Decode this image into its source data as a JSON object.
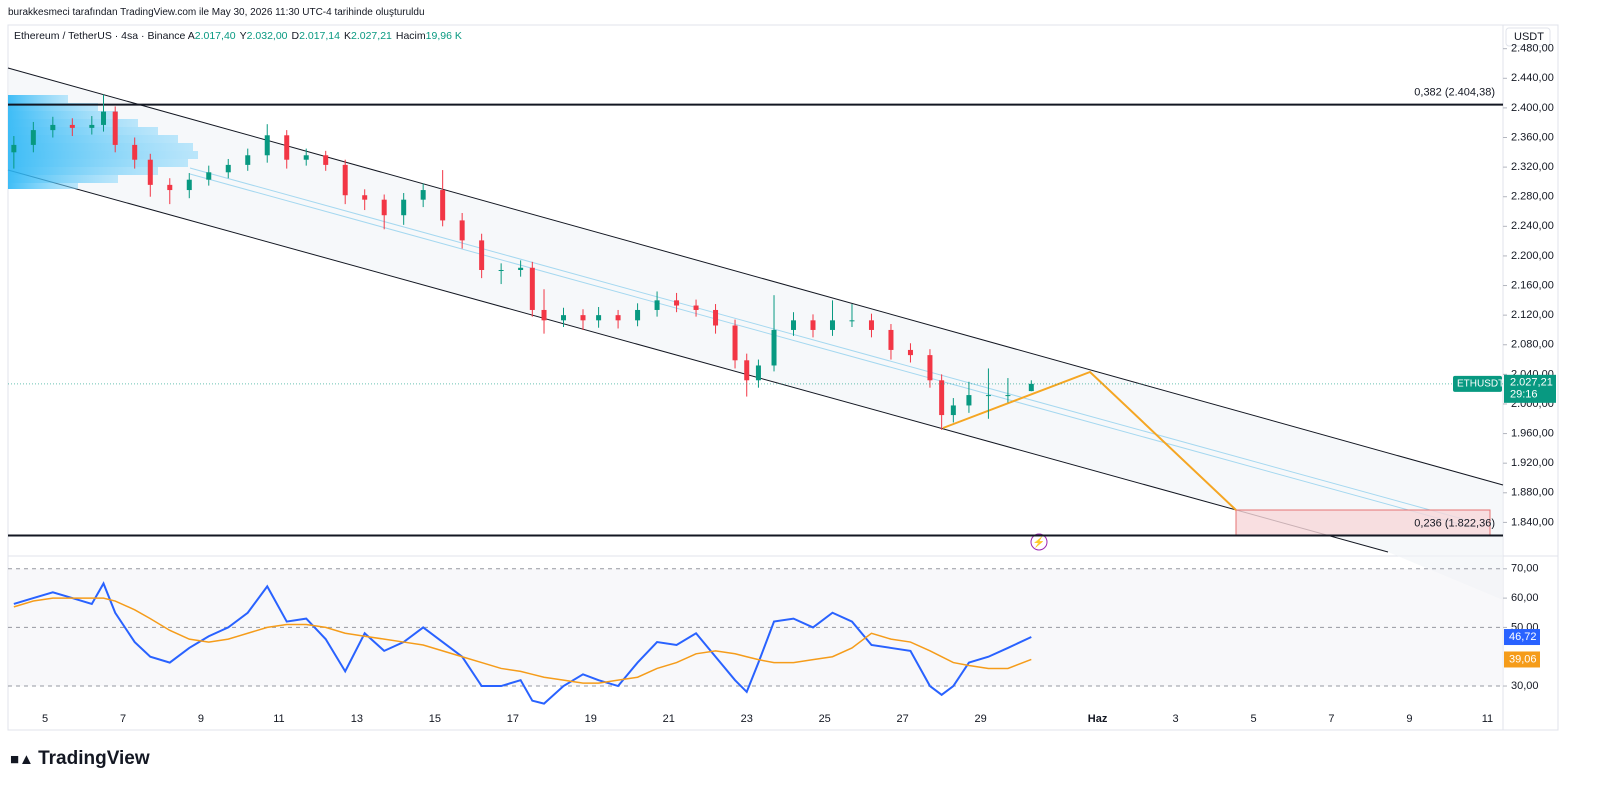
{
  "header": {
    "note": "burakkesmeci tarafından TradingView.com ile May 30, 2026 11:30 UTC-4 tarihinde oluşturuldu",
    "symbol": "Ethereum / TetherUS · 4sa · Binance",
    "legend": [
      {
        "key": "A",
        "value": "2.017,40"
      },
      {
        "key": "Y",
        "value": "2.032,00"
      },
      {
        "key": "D",
        "value": "2.017,14"
      },
      {
        "key": "K",
        "value": "2.027,21"
      },
      {
        "key": "Hacim",
        "value": "19,96 K"
      }
    ]
  },
  "footer": {
    "brand": "TradingView"
  },
  "chart_data": [
    {
      "type": "candlestick",
      "currency": "USDT",
      "up_color": "#089981",
      "down_color": "#f23645",
      "x": [
        4.2,
        4.7,
        5.2,
        5.7,
        6.2,
        6.5,
        6.8,
        7.3,
        7.7,
        8.2,
        8.7,
        9.2,
        9.7,
        10.2,
        10.7,
        11.2,
        11.7,
        12.2,
        12.7,
        13.2,
        13.7,
        14.2,
        14.7,
        15.2,
        15.7,
        16.2,
        16.7,
        17.2,
        17.5,
        17.8,
        18.3,
        18.8,
        19.2,
        19.7,
        20.2,
        20.7,
        21.2,
        21.7,
        22.2,
        22.7,
        23.0,
        23.3,
        23.7,
        24.2,
        24.7,
        25.2,
        25.7,
        26.2,
        26.7,
        27.2,
        27.7,
        28.0,
        28.3,
        28.7,
        29.2,
        29.7,
        30.3
      ],
      "open": [
        2340,
        2350,
        2370,
        2377,
        2373,
        2377,
        2395,
        2350,
        2330,
        2296,
        2289,
        2303,
        2313,
        2323,
        2336,
        2363,
        2330,
        2336,
        2323,
        2282,
        2276,
        2255,
        2276,
        2289,
        2248,
        2221,
        2181,
        2181,
        2184,
        2127,
        2113,
        2120,
        2113,
        2120,
        2113,
        2127,
        2140,
        2133,
        2127,
        2106,
        2059,
        2032,
        2052,
        2100,
        2113,
        2100,
        2113,
        2113,
        2100,
        2073,
        2066,
        2032,
        1985,
        1998,
        2012,
        2012,
        2017.4
      ],
      "high": [
        2362,
        2381,
        2388,
        2386,
        2389,
        2418,
        2402,
        2360,
        2338,
        2305,
        2312,
        2322,
        2331,
        2345,
        2378,
        2370,
        2345,
        2342,
        2330,
        2290,
        2283,
        2285,
        2298,
        2316,
        2258,
        2230,
        2190,
        2194,
        2192,
        2155,
        2130,
        2128,
        2131,
        2127,
        2136,
        2152,
        2150,
        2141,
        2135,
        2114,
        2068,
        2060,
        2147,
        2124,
        2121,
        2140,
        2135,
        2122,
        2108,
        2082,
        2074,
        2040,
        2008,
        2030,
        2048,
        2035,
        2032
      ],
      "low": [
        2318,
        2340,
        2360,
        2362,
        2364,
        2368,
        2340,
        2318,
        2280,
        2270,
        2278,
        2295,
        2305,
        2315,
        2326,
        2318,
        2322,
        2315,
        2270,
        2262,
        2236,
        2242,
        2266,
        2240,
        2210,
        2170,
        2162,
        2172,
        2118,
        2095,
        2104,
        2100,
        2103,
        2102,
        2105,
        2118,
        2124,
        2118,
        2095,
        2048,
        2010,
        2022,
        2044,
        2092,
        2090,
        2092,
        2104,
        2090,
        2060,
        2056,
        2022,
        1965,
        1975,
        1988,
        1980,
        2002,
        2017.14
      ],
      "close": [
        2350,
        2370,
        2377,
        2373,
        2377,
        2395,
        2350,
        2330,
        2296,
        2289,
        2303,
        2313,
        2323,
        2336,
        2363,
        2330,
        2336,
        2323,
        2282,
        2276,
        2255,
        2276,
        2289,
        2248,
        2221,
        2181,
        2181,
        2184,
        2127,
        2113,
        2120,
        2113,
        2120,
        2113,
        2127,
        2140,
        2133,
        2127,
        2106,
        2059,
        2032,
        2052,
        2100,
        2113,
        2100,
        2113,
        2113,
        2100,
        2073,
        2066,
        2032,
        1985,
        1998,
        2012,
        2012,
        2012,
        2027.21
      ],
      "xlim": [
        4.05,
        42.4
      ],
      "ylim": [
        1800,
        2512
      ],
      "yticks": [
        {
          "value": 1840,
          "label": "1.840,00"
        },
        {
          "value": 1880,
          "label": "1.880,00"
        },
        {
          "value": 1920,
          "label": "1.920,00"
        },
        {
          "value": 1960,
          "label": "1.960,00"
        },
        {
          "value": 2000,
          "label": "2.000,00"
        },
        {
          "value": 2040,
          "label": "2.040,00"
        },
        {
          "value": 2080,
          "label": "2.080,00"
        },
        {
          "value": 2120,
          "label": "2.120,00"
        },
        {
          "value": 2160,
          "label": "2.160,00"
        },
        {
          "value": 2200,
          "label": "2.200,00"
        },
        {
          "value": 2240,
          "label": "2.240,00"
        },
        {
          "value": 2280,
          "label": "2.280,00"
        },
        {
          "value": 2320,
          "label": "2.320,00"
        },
        {
          "value": 2360,
          "label": "2.360,00"
        },
        {
          "value": 2400,
          "label": "2.400,00"
        },
        {
          "value": 2440,
          "label": "2.440,00"
        },
        {
          "value": 2480,
          "label": "2.480,00"
        }
      ],
      "levels": [
        {
          "value": 2404.38,
          "label": "0,382 (2.404,38)"
        },
        {
          "value": 1822.36,
          "label": "0,236 (1.822,36)"
        }
      ],
      "last_price": {
        "value": 2027.21,
        "label": "2.027,21",
        "symbol": "ETHUSDT",
        "countdown": "29:16"
      }
    },
    {
      "type": "line",
      "ylim": [
        15,
        73
      ],
      "yticks": [
        {
          "value": 30,
          "label": "30,00"
        },
        {
          "value": 50,
          "label": "50,00"
        },
        {
          "value": 60,
          "label": "60,00"
        },
        {
          "value": 70,
          "label": "70,00"
        }
      ],
      "hlines": [
        30,
        50,
        70
      ],
      "xlim": [
        4.05,
        42.4
      ],
      "xticks": [
        5,
        7,
        9,
        11,
        13,
        15,
        17,
        19,
        21,
        23,
        25,
        27,
        29,
        {
          "value": 32,
          "label": "Haz"
        },
        {
          "value": 34,
          "label": "3"
        },
        {
          "value": 36,
          "label": "5"
        },
        {
          "value": 38,
          "label": "7"
        },
        {
          "value": 40,
          "label": "9"
        },
        {
          "value": 42,
          "label": "11"
        }
      ],
      "x": [
        4.2,
        4.7,
        5.2,
        5.7,
        6.2,
        6.5,
        6.8,
        7.3,
        7.7,
        8.2,
        8.7,
        9.2,
        9.7,
        10.2,
        10.7,
        11.2,
        11.7,
        12.2,
        12.7,
        13.2,
        13.7,
        14.2,
        14.7,
        15.2,
        15.7,
        16.2,
        16.7,
        17.2,
        17.5,
        17.8,
        18.3,
        18.8,
        19.2,
        19.7,
        20.2,
        20.7,
        21.2,
        21.7,
        22.2,
        22.7,
        23.0,
        23.3,
        23.7,
        24.2,
        24.7,
        25.2,
        25.7,
        26.2,
        26.7,
        27.2,
        27.7,
        28.0,
        28.3,
        28.7,
        29.2,
        29.7,
        30.3
      ],
      "series": [
        {
          "color": "#2962ff",
          "last_label": "46,72",
          "values": [
            58,
            60,
            62,
            60,
            58,
            65,
            55,
            45,
            40,
            38,
            43,
            47,
            50,
            55,
            64,
            52,
            53,
            46,
            35,
            48,
            42,
            45,
            50,
            45,
            40,
            30,
            30,
            32,
            25,
            24,
            30,
            34,
            32,
            30,
            38,
            45,
            44,
            48,
            40,
            32,
            28,
            38,
            52,
            53,
            50,
            55,
            52,
            44,
            43,
            42,
            30,
            27,
            30,
            38,
            40,
            43,
            46.72
          ]
        },
        {
          "color": "#f59c1a",
          "last_label": "39,06",
          "values": [
            57,
            59,
            60,
            60,
            60,
            60,
            59,
            56,
            53,
            49,
            46,
            45,
            46,
            48,
            50,
            51,
            51,
            50,
            48,
            47,
            46,
            45,
            44,
            42,
            40,
            38,
            36,
            35,
            34,
            33,
            32,
            31,
            31,
            32,
            33,
            36,
            38,
            41,
            42,
            41,
            40,
            39,
            38,
            38,
            39,
            40,
            43,
            48,
            46,
            45,
            42,
            40,
            38,
            37,
            36,
            36,
            39.06
          ]
        }
      ]
    }
  ]
}
